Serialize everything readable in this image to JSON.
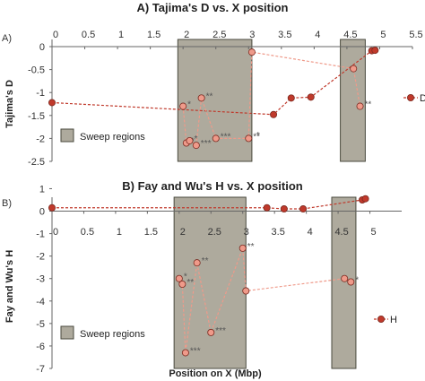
{
  "chart_data": [
    {
      "type": "scatter",
      "panel_label": "A)",
      "title": "A) Tajima's D vs. X position",
      "ylabel": "Tajima's D",
      "xlim": [
        0,
        5.5
      ],
      "ylim": [
        -2.5,
        0
      ],
      "xticks": [
        "0",
        "0.5",
        "1",
        "1.5",
        "2",
        "2.5",
        "3",
        "3.5",
        "4",
        "4.5",
        "5",
        "5.5"
      ],
      "yticks": [
        "0",
        "-0.5",
        "-1",
        "-1.5",
        "-2",
        "-2.5"
      ],
      "sweep_regions": [
        [
          1.92,
          3.05
        ],
        [
          4.4,
          4.78
        ]
      ],
      "sweep_label": "Sweep regions",
      "series": [
        {
          "name": "D",
          "color": "#c0392b",
          "points": [
            {
              "x": 0.0,
              "y": -1.22,
              "label": ""
            },
            {
              "x": 3.38,
              "y": -1.48,
              "label": ""
            },
            {
              "x": 3.65,
              "y": -1.12,
              "label": ""
            },
            {
              "x": 3.95,
              "y": -1.1,
              "label": ""
            },
            {
              "x": 4.88,
              "y": -0.09,
              "label": ""
            },
            {
              "x": 4.93,
              "y": -0.08,
              "label": ""
            }
          ]
        },
        {
          "name": "",
          "color": "#ef9a8a",
          "points": [
            {
              "x": 2.0,
              "y": -1.3,
              "label": "*"
            },
            {
              "x": 2.05,
              "y": -2.1,
              "label": "*"
            },
            {
              "x": 2.1,
              "y": -2.05,
              "label": "*"
            },
            {
              "x": 2.2,
              "y": -2.15,
              "label": "***"
            },
            {
              "x": 2.28,
              "y": -1.12,
              "label": "**"
            },
            {
              "x": 2.5,
              "y": -2.0,
              "label": "***"
            },
            {
              "x": 3.0,
              "y": -2.0,
              "label": "**"
            },
            {
              "x": 3.05,
              "y": -0.12,
              "label": ""
            },
            {
              "x": 4.6,
              "y": -0.48,
              "label": ""
            },
            {
              "x": 4.7,
              "y": -1.3,
              "label": "**"
            }
          ]
        }
      ],
      "extra_labels": [
        {
          "x": 3.05,
          "y": -1.95,
          "text": "*"
        }
      ]
    },
    {
      "type": "scatter",
      "panel_label": "B)",
      "title": "B) Fay and Wu's H vs. X position",
      "ylabel": "Fay and Wu's H",
      "xlabel": "Position on X (Mbp)",
      "xlim": [
        0,
        5.5
      ],
      "ylim": [
        -7,
        0.3
      ],
      "xticks": [
        "0",
        "0.5",
        "1",
        "1.5",
        "2",
        "2.5",
        "3",
        "3.5",
        "4",
        "4.5",
        "5"
      ],
      "yticks": [
        "1",
        "0",
        "-1",
        "-2",
        "-3",
        "-4",
        "-5",
        "-6",
        "-7"
      ],
      "sweep_regions": [
        [
          1.92,
          3.05
        ],
        [
          4.4,
          4.78
        ]
      ],
      "sweep_label": "Sweep regions",
      "series": [
        {
          "name": "H",
          "color": "#c0392b",
          "points": [
            {
              "x": 0.0,
              "y": 0.15,
              "label": ""
            },
            {
              "x": 3.38,
              "y": 0.15,
              "label": ""
            },
            {
              "x": 3.65,
              "y": 0.1,
              "label": ""
            },
            {
              "x": 3.95,
              "y": 0.1,
              "label": ""
            },
            {
              "x": 4.88,
              "y": 0.5,
              "label": ""
            },
            {
              "x": 4.93,
              "y": 0.55,
              "label": ""
            }
          ]
        },
        {
          "name": "",
          "color": "#ef9a8a",
          "points": [
            {
              "x": 2.0,
              "y": -3.0,
              "label": "*"
            },
            {
              "x": 2.05,
              "y": -3.25,
              "label": "**"
            },
            {
              "x": 2.1,
              "y": -6.3,
              "label": "***"
            },
            {
              "x": 2.28,
              "y": -2.3,
              "label": "**"
            },
            {
              "x": 2.5,
              "y": -5.4,
              "label": "***"
            },
            {
              "x": 3.0,
              "y": -1.65,
              "label": "**"
            },
            {
              "x": 3.05,
              "y": -3.55,
              "label": ""
            },
            {
              "x": 4.6,
              "y": -3.0,
              "label": ""
            },
            {
              "x": 4.7,
              "y": -3.15,
              "label": "*"
            }
          ]
        }
      ],
      "extra_labels": []
    }
  ]
}
